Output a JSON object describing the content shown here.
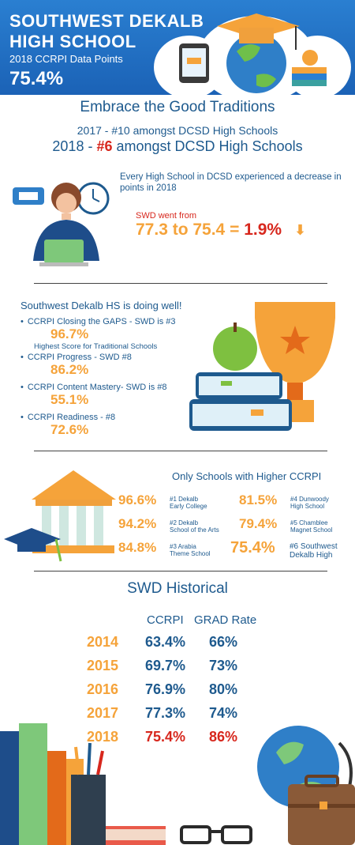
{
  "header": {
    "title_line1": "SOUTHWEST DEKALB",
    "title_line2": "HIGH SCHOOL",
    "subtitle": "2018 CCRPI Data Points",
    "score": "75.4%"
  },
  "traditions": {
    "heading": "Embrace the Good Traditions",
    "line_2017": "2017 - #10 amongst DCSD High Schools",
    "line_2018_prefix": "2018 - ",
    "line_2018_rank": "#6",
    "line_2018_suffix": " amongst DCSD High Schools"
  },
  "decrease": {
    "text": "Every High School in DCSD experienced a decrease in points in 2018",
    "swd_label": "SWD went from",
    "swd_value": "77.3 to 75.4 =",
    "swd_change": "1.9%",
    "arrow": "⬇"
  },
  "doing_well": {
    "heading": "Southwest Dekalb HS is doing well!",
    "items": [
      {
        "label": "CCRPI Closing the GAPS - SWD is #3",
        "value": "96.7%",
        "note": "Highest Score for Traditional Schools"
      },
      {
        "label": "CCRPI Progress - SWD #8",
        "value": "86.2%"
      },
      {
        "label": "CCRPI Content Mastery- SWD is #8",
        "value": "55.1%"
      },
      {
        "label": "CCRPI Readiness - #8",
        "value": "72.6%"
      }
    ]
  },
  "higher": {
    "heading": "Only Schools with Higher CCRPI",
    "schools": [
      {
        "value": "96.6%",
        "name1": "#1 Dekalb",
        "name2": "Early College"
      },
      {
        "value": "81.5%",
        "name1": "#4 Dunwoody",
        "name2": "High School"
      },
      {
        "value": "94.2%",
        "name1": "#2 Dekalb",
        "name2": "School of the Arts"
      },
      {
        "value": "79.4%",
        "name1": "#5 Chamblee",
        "name2": "Magnet School"
      },
      {
        "value": "84.8%",
        "name1": "#3 Arabia",
        "name2": "Theme School"
      },
      {
        "value": "75.4%",
        "name1": "#6 Southwest",
        "name2": "Dekalb High"
      }
    ]
  },
  "historical": {
    "heading": "SWD Historical",
    "col_ccrpi": "CCRPI",
    "col_grad": "GRAD Rate",
    "rows": [
      {
        "year": "2014",
        "ccrpi": "63.4%",
        "grad": "66%"
      },
      {
        "year": "2015",
        "ccrpi": "69.7%",
        "grad": "73%"
      },
      {
        "year": "2016",
        "ccrpi": "76.9%",
        "grad": "80%"
      },
      {
        "year": "2017",
        "ccrpi": "77.3%",
        "grad": "74%"
      },
      {
        "year": "2018",
        "ccrpi": "75.4%",
        "grad": "86%"
      }
    ]
  },
  "colors": {
    "blue": "#1e5a8e",
    "orange": "#f5a33a",
    "red": "#d7271d",
    "header_blue": "#2272c8"
  }
}
